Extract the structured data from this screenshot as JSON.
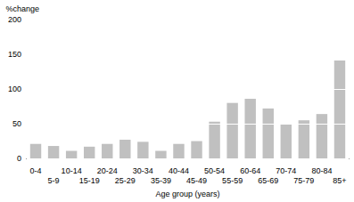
{
  "chart_data": {
    "type": "bar",
    "y_label": "%change",
    "x_label": "Age group (years)",
    "categories": [
      "0-4",
      "5-9",
      "10-14",
      "15-19",
      "20-24",
      "25-29",
      "30-34",
      "35-39",
      "40-44",
      "45-49",
      "50-54",
      "55-59",
      "60-64",
      "65-69",
      "70-74",
      "75-79",
      "80-84",
      "85+"
    ],
    "values": [
      21,
      18,
      11,
      17,
      21,
      27,
      24,
      11,
      21,
      25,
      53,
      80,
      86,
      72,
      49,
      55,
      64,
      141
    ],
    "color": "#c0c0c0",
    "ylim": [
      0,
      200
    ],
    "yticks": [
      0,
      50,
      100,
      150,
      200
    ],
    "grid": true
  }
}
